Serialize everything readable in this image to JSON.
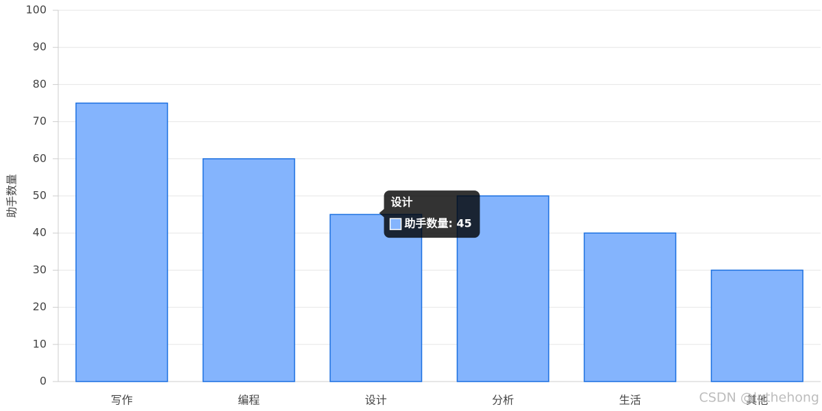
{
  "chart_data": {
    "type": "bar",
    "y_label": "助手数量",
    "categories": [
      "写作",
      "编程",
      "设计",
      "分析",
      "生活",
      "其他"
    ],
    "values": [
      75,
      60,
      45,
      50,
      40,
      30
    ],
    "color": "#84b4fd",
    "ylim": [
      0,
      100
    ],
    "yticks": [
      0,
      10,
      20,
      30,
      40,
      50,
      60,
      70,
      80,
      90,
      100
    ],
    "grid": true,
    "tooltip": {
      "title": "设计",
      "text": "助手数量: 45"
    },
    "watermark": "CSDN @luthehong"
  }
}
